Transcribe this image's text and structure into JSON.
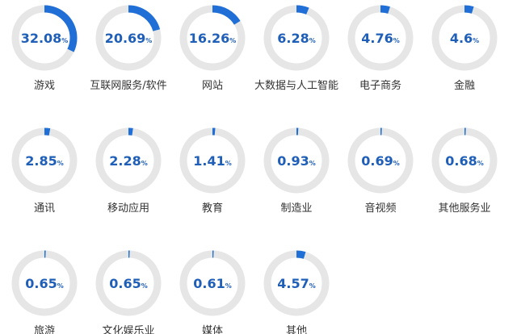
{
  "colors": {
    "ring_track": "#e6e6e6",
    "ring_fill": "#1f6fd6",
    "value_text": "#1f5fb8",
    "label_text": "#333333"
  },
  "chart_data": {
    "type": "donut-grid",
    "title": "",
    "value_suffix": "%",
    "items": [
      {
        "label": "游戏",
        "value_text": "32.08",
        "value": 32.08
      },
      {
        "label": "互联网服务/软件",
        "value_text": "20.69",
        "value": 20.69
      },
      {
        "label": "网站",
        "value_text": "16.26",
        "value": 16.26
      },
      {
        "label": "大数据与人工智能",
        "value_text": "6.28",
        "value": 6.28
      },
      {
        "label": "电子商务",
        "value_text": "4.76",
        "value": 4.76
      },
      {
        "label": "金融",
        "value_text": "4.6",
        "value": 4.6
      },
      {
        "label": "通讯",
        "value_text": "2.85",
        "value": 2.85
      },
      {
        "label": "移动应用",
        "value_text": "2.28",
        "value": 2.28
      },
      {
        "label": "教育",
        "value_text": "1.41",
        "value": 1.41
      },
      {
        "label": "制造业",
        "value_text": "0.93",
        "value": 0.93
      },
      {
        "label": "音视频",
        "value_text": "0.69",
        "value": 0.69
      },
      {
        "label": "其他服务业",
        "value_text": "0.68",
        "value": 0.68
      },
      {
        "label": "旅游",
        "value_text": "0.65",
        "value": 0.65
      },
      {
        "label": "文化娱乐业",
        "value_text": "0.65",
        "value": 0.65
      },
      {
        "label": "媒体",
        "value_text": "0.61",
        "value": 0.61
      },
      {
        "label": "其他",
        "value_text": "4.57",
        "value": 4.57
      }
    ]
  }
}
